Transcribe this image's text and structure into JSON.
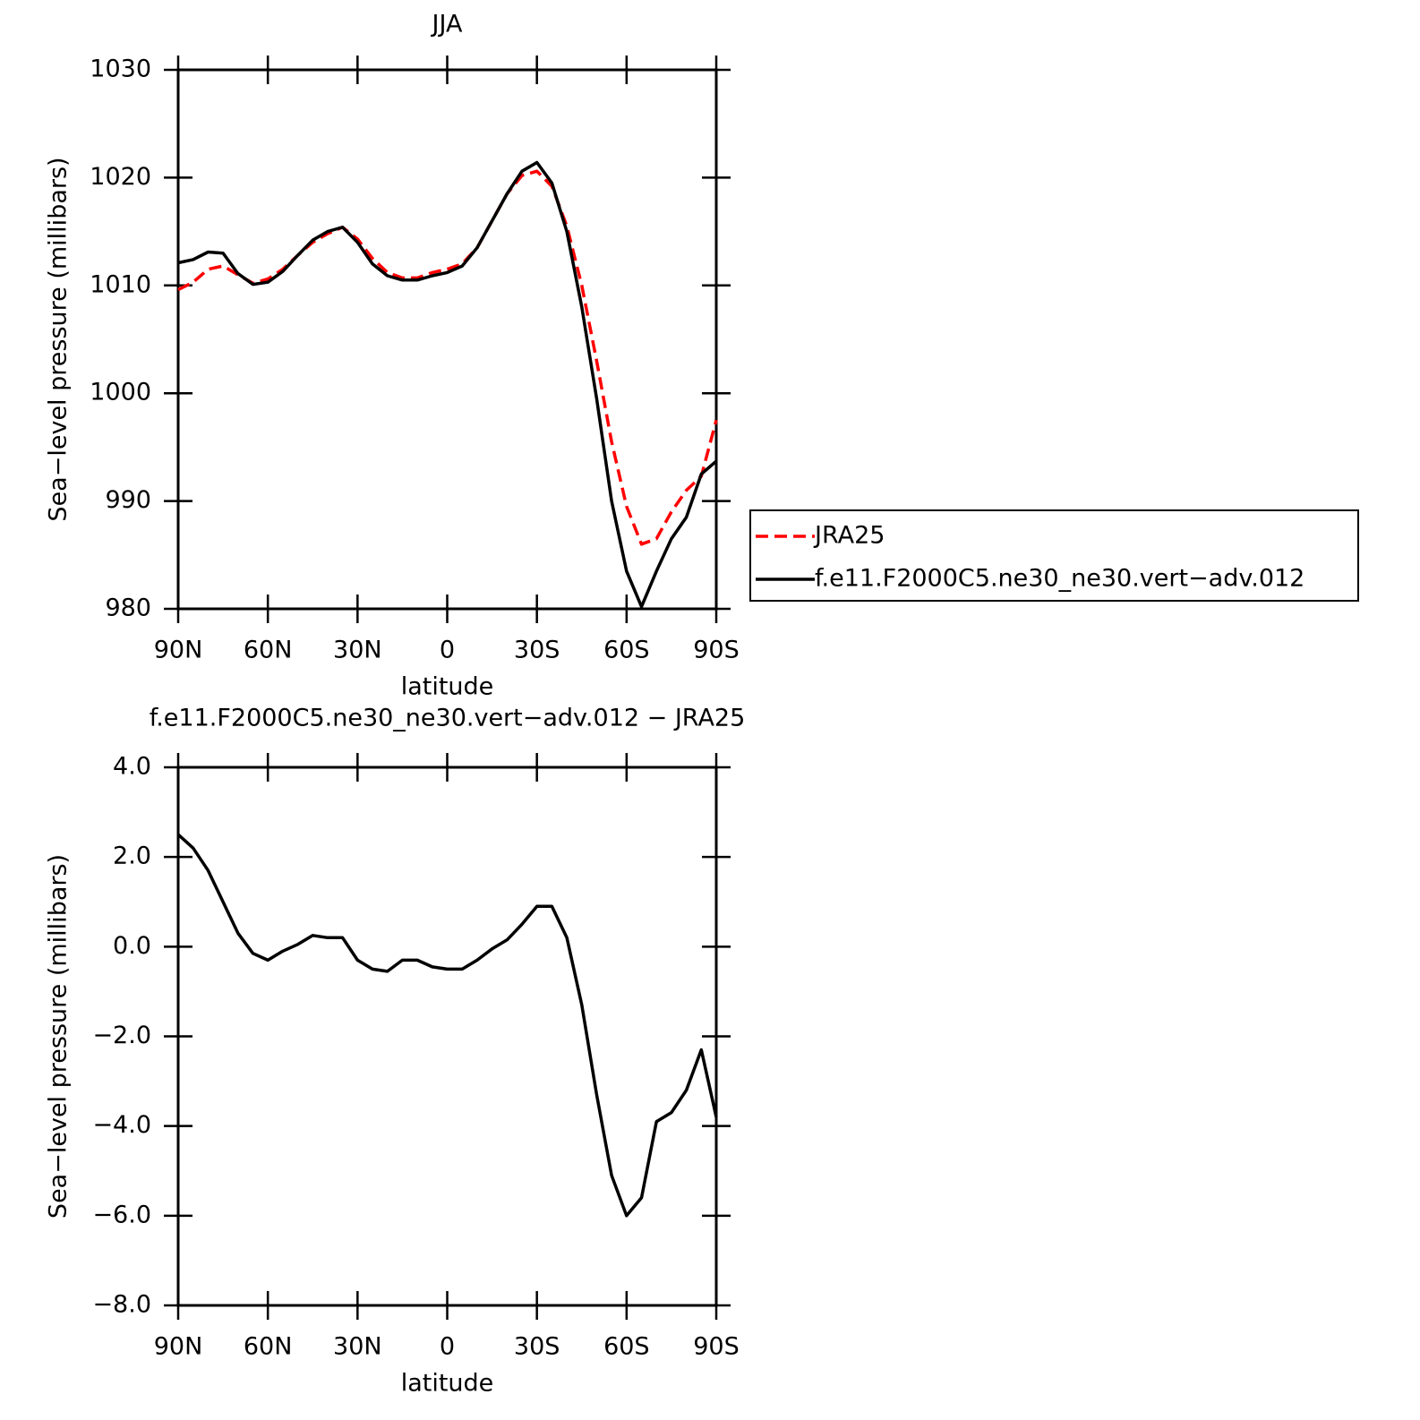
{
  "chart_data": [
    {
      "type": "line",
      "title": "JJA",
      "xlabel": "latitude",
      "ylabel": "Sea−level pressure (millibars)",
      "x": [
        90,
        85,
        80,
        75,
        70,
        65,
        60,
        55,
        50,
        45,
        40,
        35,
        30,
        25,
        20,
        15,
        10,
        5,
        0,
        -5,
        -10,
        -15,
        -20,
        -25,
        -30,
        -35,
        -40,
        -45,
        -50,
        -55,
        -60,
        -65,
        -70,
        -75,
        -80,
        -85,
        -90
      ],
      "series": [
        {
          "name": "JRA25",
          "color": "#ff0000",
          "style": "dashed",
          "values": [
            1009.6,
            1010.3,
            1011.5,
            1011.8,
            1011.0,
            1010.2,
            1010.6,
            1011.5,
            1012.8,
            1014.0,
            1014.8,
            1015.4,
            1014.3,
            1012.5,
            1011.2,
            1010.7,
            1010.7,
            1011.2,
            1011.5,
            1012.0,
            1013.5,
            1016.0,
            1018.5,
            1020.2,
            1020.6,
            1019.2,
            1015.5,
            1010.0,
            1003.0,
            995.5,
            989.5,
            986.0,
            986.5,
            989.0,
            991.0,
            992.3,
            997.5
          ]
        },
        {
          "name": "f.e11.F2000C5.ne30_ne30.vert−adv.012",
          "color": "#000000",
          "style": "solid",
          "values": [
            1012.1,
            1012.4,
            1013.1,
            1013.0,
            1011.1,
            1010.1,
            1010.3,
            1011.3,
            1012.8,
            1014.2,
            1015.0,
            1015.4,
            1014.0,
            1012.0,
            1010.9,
            1010.5,
            1010.5,
            1010.9,
            1011.2,
            1011.8,
            1013.5,
            1016.0,
            1018.5,
            1020.6,
            1021.4,
            1019.5,
            1015.0,
            1008.0,
            999.5,
            990.0,
            983.5,
            980.2,
            983.5,
            986.5,
            988.5,
            992.5,
            993.7
          ]
        }
      ],
      "xlim": [
        90,
        -90
      ],
      "xticks": [
        {
          "value": 90,
          "label": "90N"
        },
        {
          "value": 60,
          "label": "60N"
        },
        {
          "value": 30,
          "label": "30N"
        },
        0,
        {
          "value": -30,
          "label": "30S"
        },
        {
          "value": -60,
          "label": "60S"
        },
        {
          "value": -90,
          "label": "90S"
        }
      ],
      "ylim": [
        980,
        1030
      ],
      "yticks": [
        980,
        990,
        1000,
        1010,
        1020,
        1030
      ],
      "legend": "right"
    },
    {
      "type": "line",
      "title": "f.e11.F2000C5.ne30_ne30.vert−adv.012 − JRA25",
      "xlabel": "latitude",
      "ylabel": "Sea−level pressure (millibars)",
      "x": [
        90,
        85,
        80,
        75,
        70,
        65,
        60,
        55,
        50,
        45,
        40,
        35,
        30,
        25,
        20,
        15,
        10,
        5,
        0,
        -5,
        -10,
        -15,
        -20,
        -25,
        -30,
        -35,
        -40,
        -45,
        -50,
        -55,
        -60,
        -65,
        -70,
        -75,
        -80,
        -85,
        -90
      ],
      "series": [
        {
          "color": "#000000",
          "style": "solid",
          "values": [
            2.5,
            2.2,
            1.7,
            1.0,
            0.3,
            -0.15,
            -0.3,
            -0.1,
            0.05,
            0.25,
            0.2,
            0.2,
            -0.3,
            -0.5,
            -0.55,
            -0.3,
            -0.3,
            -0.45,
            -0.5,
            -0.5,
            -0.3,
            -0.05,
            0.15,
            0.5,
            0.9,
            0.9,
            0.2,
            -1.3,
            -3.3,
            -5.1,
            -6.0,
            -5.6,
            -3.9,
            -3.7,
            -3.2,
            -2.3,
            -3.8
          ]
        }
      ],
      "xlim": [
        90,
        -90
      ],
      "xticks": [
        {
          "value": 90,
          "label": "90N"
        },
        {
          "value": 60,
          "label": "60N"
        },
        {
          "value": 30,
          "label": "30N"
        },
        0,
        {
          "value": -30,
          "label": "30S"
        },
        {
          "value": -60,
          "label": "60S"
        },
        {
          "value": -90,
          "label": "90S"
        }
      ],
      "ylim": [
        -8,
        4
      ],
      "yticks": [
        {
          "value": -8,
          "label": "−8.0"
        },
        {
          "value": -6,
          "label": "−6.0"
        },
        {
          "value": -4,
          "label": "−4.0"
        },
        {
          "value": -2,
          "label": "−2.0"
        },
        {
          "value": 0,
          "label": "0.0"
        },
        {
          "value": 2,
          "label": "2.0"
        },
        {
          "value": 4,
          "label": "4.0"
        }
      ]
    }
  ]
}
